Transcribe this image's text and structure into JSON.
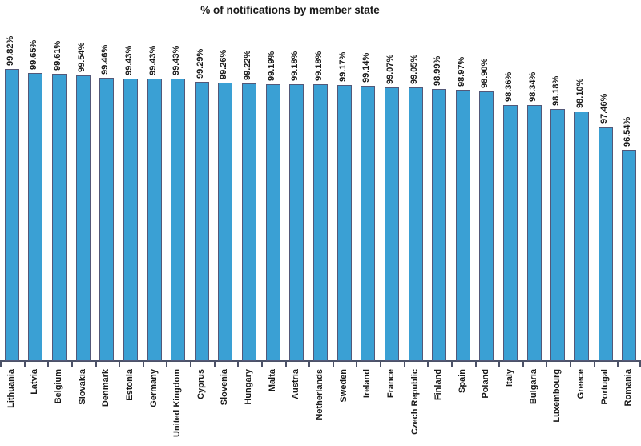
{
  "chart_data": {
    "type": "bar",
    "title": "% of notifications by member state",
    "xlabel": "",
    "ylabel": "",
    "categories": [
      "Lithuania",
      "Latvia",
      "Belgium",
      "Slovakia",
      "Denmark",
      "Estonia",
      "Germany",
      "United Kingdom",
      "Cyprus",
      "Slovenia",
      "Hungary",
      "Malta",
      "Austria",
      "Netherlands",
      "Sweden",
      "Ireland",
      "France",
      "Czech Republic",
      "Finland",
      "Spain",
      "Poland",
      "Italy",
      "Bulgaria",
      "Luxembourg",
      "Greece",
      "Portugal",
      "Romania"
    ],
    "values": [
      99.82,
      99.65,
      99.61,
      99.54,
      99.46,
      99.43,
      99.43,
      99.43,
      99.29,
      99.26,
      99.22,
      99.19,
      99.18,
      99.18,
      99.17,
      99.14,
      99.07,
      99.05,
      98.99,
      98.97,
      98.9,
      98.36,
      98.34,
      98.18,
      98.1,
      97.46,
      96.54
    ],
    "value_labels": [
      "99.82%",
      "99.65%",
      "99.61%",
      "99.54%",
      "99.46%",
      "99.43%",
      "99.43%",
      "99.43%",
      "99.29%",
      "99.26%",
      "99.22%",
      "99.19%",
      "99.18%",
      "99.18%",
      "99.17%",
      "99.14%",
      "99.07%",
      "99.05%",
      "98.99%",
      "98.97%",
      "98.90%",
      "98.36%",
      "98.34%",
      "98.18%",
      "98.10%",
      "97.46%",
      "96.54%"
    ],
    "ylim": [
      88,
      100
    ],
    "grid": false,
    "legend": false,
    "colors": {
      "bar_fill": "#3AA0D4",
      "bar_border": "#535878",
      "axis": "#4C5268",
      "text": "#1A1A1A",
      "background": "#FFFFFF"
    }
  }
}
